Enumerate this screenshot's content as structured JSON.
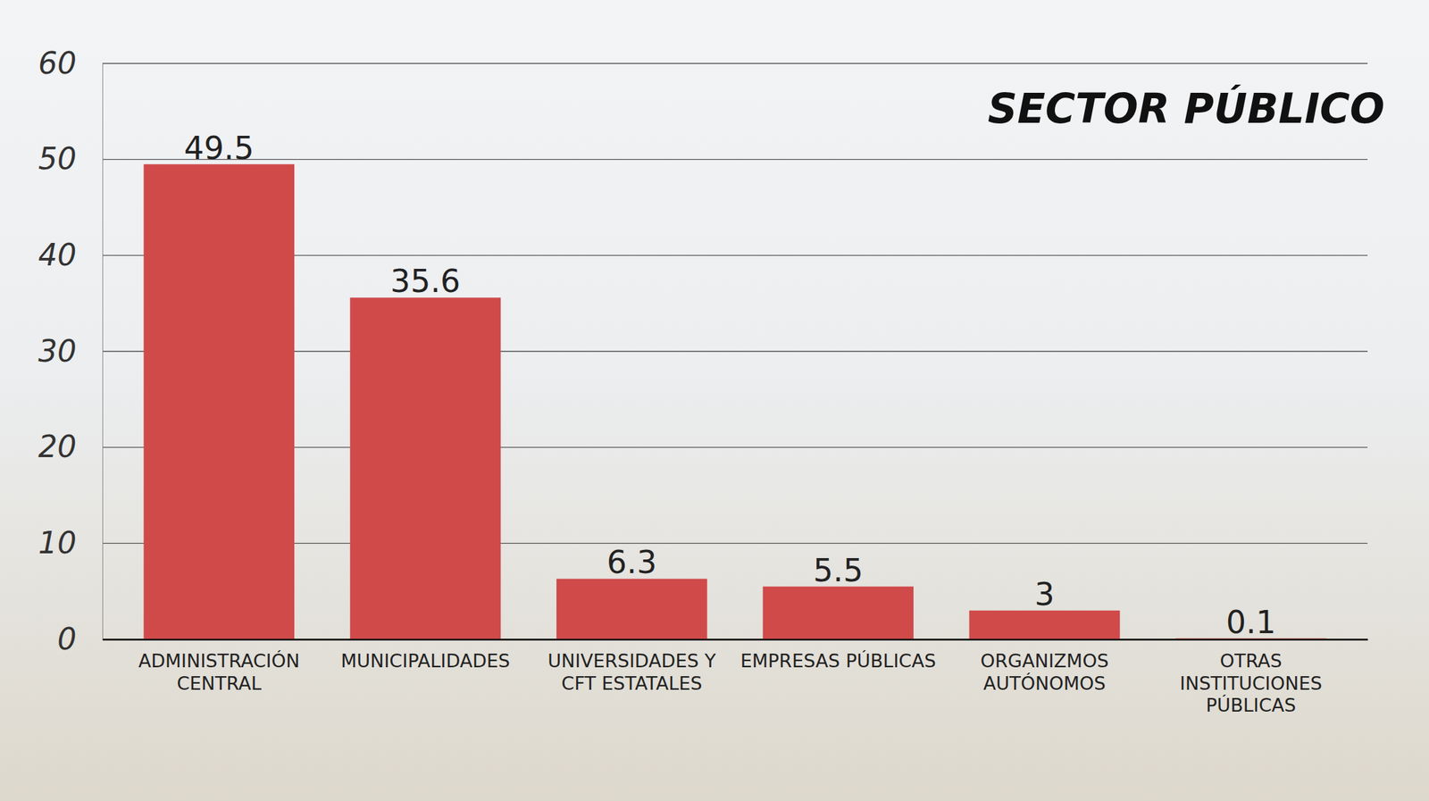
{
  "chart_data": {
    "type": "bar",
    "title": "SECTOR PÚBLICO",
    "categories": [
      "ADMINISTRACIÓN CENTRAL",
      "MUNICIPALIDADES",
      "UNIVERSIDADES Y CFT ESTATALES",
      "EMPRESAS PÚBLICAS",
      "ORGANIZMOS AUTÓNOMOS",
      "OTRAS INSTITUCIONES PÚBLICAS"
    ],
    "values": [
      49.5,
      35.6,
      6.3,
      5.5,
      3,
      0.1
    ],
    "color": "#d04a4a",
    "ylim": [
      0,
      60
    ],
    "yticks": [
      0,
      10,
      20,
      30,
      40,
      50,
      60
    ],
    "grid": true,
    "data_labels": true
  }
}
